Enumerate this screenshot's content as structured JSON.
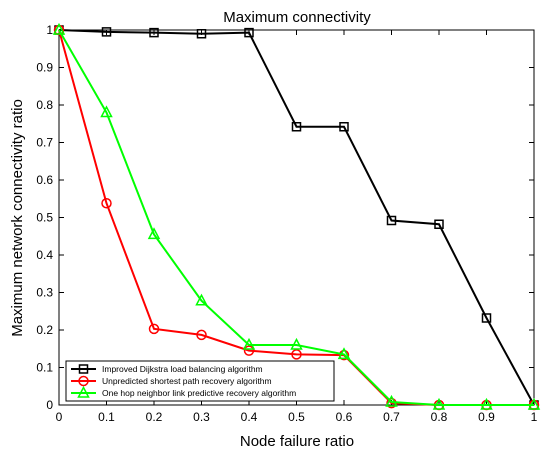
{
  "chart_data": {
    "type": "line",
    "title": "Maximum connectivity",
    "xlabel": "Node failure ratio",
    "ylabel": "Maximum network connectivity ratio",
    "xlim": [
      0,
      1
    ],
    "ylim": [
      0,
      1
    ],
    "x_ticks": [
      "0",
      "0.1",
      "0.2",
      "0.3",
      "0.4",
      "0.5",
      "0.6",
      "0.7",
      "0.8",
      "0.9",
      "1"
    ],
    "y_ticks": [
      "0",
      "0.1",
      "0.2",
      "0.3",
      "0.4",
      "0.5",
      "0.6",
      "0.7",
      "0.8",
      "0.9",
      "1"
    ],
    "grid": false,
    "legend_position": "bottom-left",
    "x": [
      0,
      0.1,
      0.2,
      0.3,
      0.4,
      0.5,
      0.6,
      0.7,
      0.8,
      0.9,
      1
    ],
    "series": [
      {
        "name": "Improved Dijkstra load balancing algorithm",
        "color": "#000000",
        "marker": "square",
        "values": [
          1.0,
          0.995,
          0.993,
          0.99,
          0.993,
          0.742,
          0.742,
          0.492,
          0.482,
          0.232,
          0.0
        ]
      },
      {
        "name": "Unpredicted shortest path recovery algorithm",
        "color": "#ff0000",
        "marker": "circle",
        "values": [
          1.0,
          0.538,
          0.203,
          0.187,
          0.145,
          0.135,
          0.133,
          0.005,
          0.0,
          0.0,
          0.0
        ]
      },
      {
        "name": "One hop neighbor link predictive recovery algorithm",
        "color": "#00ff00",
        "marker": "triangle",
        "values": [
          1.0,
          0.78,
          0.455,
          0.278,
          0.16,
          0.16,
          0.135,
          0.008,
          0.0,
          0.0,
          0.0
        ]
      }
    ]
  }
}
